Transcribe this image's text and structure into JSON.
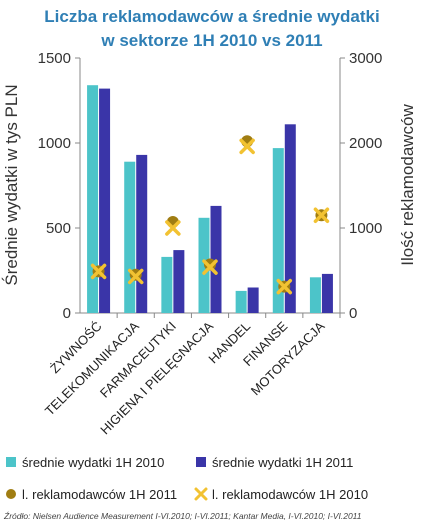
{
  "chart_data": {
    "type": "bar",
    "title_line1": "Liczba reklamodawców a średnie wydatki",
    "title_line2": "w sektorze 1H 2010 vs 2011",
    "ylabel_left": "Średnie wydatki w tys PLN",
    "ylabel_right": "Ilość reklamodawców",
    "ylim_left": [
      0,
      1500
    ],
    "ylim_right": [
      0,
      3000
    ],
    "yticks_left": [
      "0",
      "500",
      "1000",
      "1500"
    ],
    "yticks_right": [
      "0",
      "1000",
      "2000",
      "3000"
    ],
    "categories": [
      "ŻYWNOŚĆ",
      "TELEKOMUNIKACJA",
      "FARMACEUTYKI",
      "HIGIENA I PIELĘGNACJA",
      "HANDEL",
      "FINANSE",
      "MOTORYZACJA"
    ],
    "series": [
      {
        "name": "średnie wydatki 1H 2010",
        "kind": "bar",
        "axis": "left",
        "color": "#4cc4c9",
        "values": [
          1340,
          890,
          330,
          560,
          130,
          970,
          210
        ]
      },
      {
        "name": "średnie wydatki 1H 2011",
        "kind": "bar",
        "axis": "left",
        "color": "#3a35a8",
        "values": [
          1320,
          930,
          370,
          630,
          150,
          1110,
          230
        ]
      },
      {
        "name": "l. reklamodawców 1H 2011",
        "kind": "marker-circle",
        "axis": "right",
        "color": "#a07d12",
        "values": [
          490,
          450,
          1070,
          570,
          2020,
          310,
          1150
        ]
      },
      {
        "name": "l. reklamodawców 1H 2010",
        "kind": "marker-x",
        "axis": "right",
        "color": "#f2c232",
        "values": [
          490,
          430,
          1000,
          540,
          1960,
          310,
          1150
        ]
      }
    ],
    "grid": false,
    "legend": "bottom"
  },
  "source": "Źródło: Nielsen Audience Measurement I-VI.2010; I-VI.2011; Kantar Media, I-VI.2010; I-VI.2011"
}
